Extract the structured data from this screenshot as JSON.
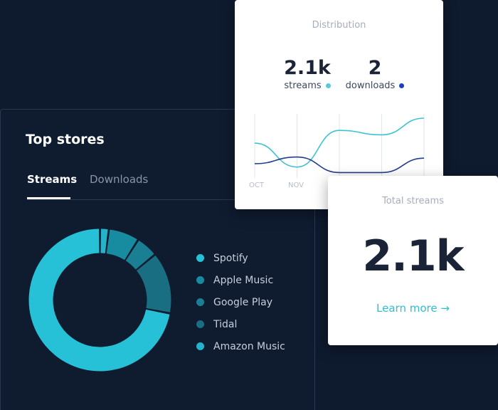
{
  "top_stores": {
    "title": "Top stores",
    "tabs": {
      "streams": "Streams",
      "downloads": "Downloads"
    },
    "stores": [
      {
        "label": "Spotify",
        "color": "#26c1d6",
        "share": 0.72
      },
      {
        "label": "Apple Music",
        "color": "#178ca0",
        "share": 0.07
      },
      {
        "label": "Google Play",
        "color": "#1a7f93",
        "share": 0.05
      },
      {
        "label": "Tidal",
        "color": "#1a6e82",
        "share": 0.14
      },
      {
        "label": "Amazon Music",
        "color": "#24b3c9",
        "share": 0.02
      }
    ]
  },
  "distribution": {
    "title": "Distribution",
    "streams": {
      "value": "2.1k",
      "label": "streams",
      "color": "#5cc9d6"
    },
    "downloads": {
      "value": "2",
      "label": "downloads",
      "color": "#1f3fbf"
    },
    "ticks": [
      "OCT",
      "NOV"
    ],
    "colors": {
      "streams": "#3cc3d3",
      "downloads": "#233e8b"
    }
  },
  "total_streams": {
    "title": "Total streams",
    "value": "2.1k",
    "link": "Learn more →"
  },
  "chart_data": {
    "type": "line",
    "x": [
      "OCT",
      "NOV",
      "",
      "",
      ""
    ],
    "series": [
      {
        "name": "streams",
        "values": [
          0.55,
          0.12,
          0.78,
          0.7,
          1.0
        ]
      },
      {
        "name": "downloads",
        "values": [
          0.18,
          0.3,
          0.02,
          0.02,
          0.28
        ]
      }
    ]
  }
}
